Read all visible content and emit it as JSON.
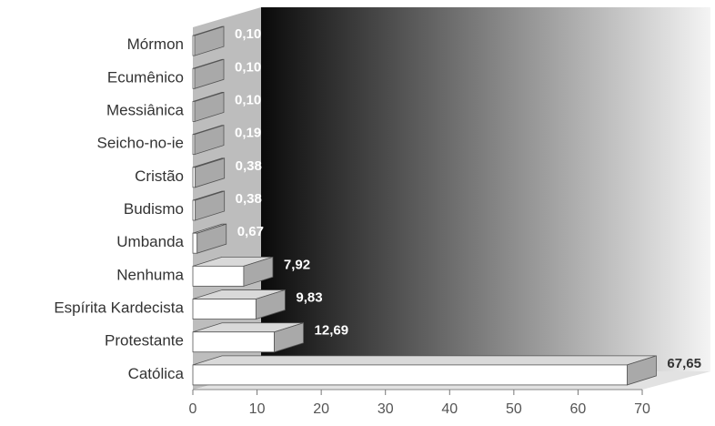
{
  "chart_data": {
    "type": "bar",
    "orientation": "horizontal",
    "style": "3d",
    "categories": [
      "Mórmon",
      "Ecumênico",
      "Messiânica",
      "Seicho-no-ie",
      "Cristão",
      "Budismo",
      "Umbanda",
      "Nenhuma",
      "Espírita Kardecista",
      "Protestante",
      "Católica"
    ],
    "values": [
      0.1,
      0.1,
      0.1,
      0.19,
      0.38,
      0.38,
      0.67,
      7.92,
      9.83,
      12.69,
      67.65
    ],
    "value_labels": [
      "0,10",
      "0,10",
      "0,10",
      "0,19",
      "0,38",
      "0,38",
      "0,67",
      "7,92",
      "9,83",
      "12,69",
      "67,65"
    ],
    "x_ticks": [
      "0",
      "10",
      "20",
      "30",
      "40",
      "50",
      "60",
      "70"
    ],
    "xlim": [
      0,
      70
    ],
    "title": "",
    "xlabel": "",
    "ylabel": "",
    "grid": false,
    "legend": "none",
    "colors": {
      "bar_front": "#ffffff",
      "bar_top": "#d9d9d9",
      "bar_side": "#a9a9a9",
      "bar_stroke": "#555555",
      "wall_dark": "#0a0a0a",
      "wall_light": "#f4f4f4",
      "side_wall": "#bdbdbd",
      "floor": "#e2e2e2",
      "text": "#333333",
      "value_on_dark": "#ffffff",
      "value_on_light": "#333333"
    }
  }
}
